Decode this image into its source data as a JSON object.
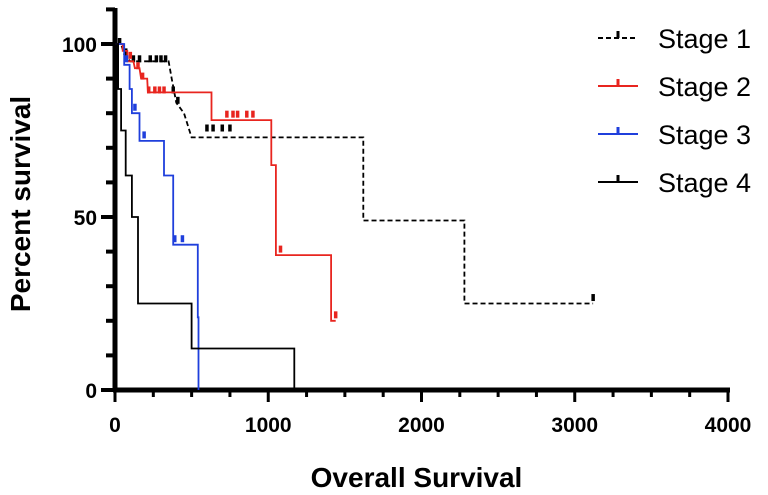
{
  "chart_data": {
    "type": "line",
    "subtype": "kaplan-meier",
    "xlabel": "Overall Survival",
    "ylabel": "Percent survival",
    "xlim": [
      0,
      4000
    ],
    "ylim": [
      0,
      100
    ],
    "xticks": [
      0,
      1000,
      2000,
      3000,
      4000
    ],
    "yticks": [
      0,
      50,
      100
    ],
    "xtick_labels": [
      "0",
      "1000",
      "2000",
      "3000",
      "4000"
    ],
    "ytick_labels": [
      "0",
      "50",
      "100"
    ],
    "legend_position": "top-right",
    "series": [
      {
        "name": "Stage 1",
        "color": "#000000",
        "dash": "dashed",
        "steps": [
          [
            0,
            100
          ],
          [
            40,
            100
          ],
          [
            60,
            97
          ],
          [
            100,
            95
          ],
          [
            350,
            95
          ],
          [
            370,
            90
          ],
          [
            400,
            83
          ],
          [
            450,
            80
          ],
          [
            500,
            73
          ],
          [
            1620,
            73
          ],
          [
            1620,
            49
          ],
          [
            2280,
            49
          ],
          [
            2280,
            25
          ],
          [
            3120,
            25
          ]
        ],
        "censored": [
          [
            30,
            100
          ],
          [
            70,
            97
          ],
          [
            120,
            95
          ],
          [
            160,
            95
          ],
          [
            230,
            95
          ],
          [
            270,
            95
          ],
          [
            300,
            95
          ],
          [
            330,
            95
          ],
          [
            380,
            86
          ],
          [
            410,
            83
          ],
          [
            600,
            75
          ],
          [
            640,
            75
          ],
          [
            700,
            75
          ],
          [
            750,
            75
          ],
          [
            3120,
            26
          ]
        ]
      },
      {
        "name": "Stage 2",
        "color": "#e8251f",
        "dash": "solid",
        "steps": [
          [
            0,
            100
          ],
          [
            50,
            100
          ],
          [
            50,
            98
          ],
          [
            80,
            98
          ],
          [
            80,
            95
          ],
          [
            120,
            95
          ],
          [
            130,
            93
          ],
          [
            160,
            93
          ],
          [
            170,
            90
          ],
          [
            210,
            90
          ],
          [
            215,
            86
          ],
          [
            630,
            86
          ],
          [
            630,
            78
          ],
          [
            1020,
            78
          ],
          [
            1020,
            65
          ],
          [
            1050,
            65
          ],
          [
            1050,
            39
          ],
          [
            1410,
            39
          ],
          [
            1410,
            20
          ],
          [
            1440,
            20
          ]
        ],
        "censored": [
          [
            100,
            96
          ],
          [
            150,
            93
          ],
          [
            180,
            90
          ],
          [
            220,
            86
          ],
          [
            260,
            86
          ],
          [
            290,
            86
          ],
          [
            320,
            86
          ],
          [
            730,
            79
          ],
          [
            770,
            79
          ],
          [
            800,
            79
          ],
          [
            860,
            79
          ],
          [
            900,
            79
          ],
          [
            1080,
            40
          ],
          [
            1440,
            21
          ]
        ]
      },
      {
        "name": "Stage 3",
        "color": "#1f3fdc",
        "dash": "solid",
        "steps": [
          [
            0,
            100
          ],
          [
            60,
            100
          ],
          [
            60,
            94
          ],
          [
            95,
            94
          ],
          [
            95,
            87
          ],
          [
            110,
            87
          ],
          [
            110,
            80
          ],
          [
            160,
            80
          ],
          [
            160,
            72
          ],
          [
            320,
            72
          ],
          [
            320,
            62
          ],
          [
            380,
            62
          ],
          [
            380,
            42
          ],
          [
            540,
            42
          ],
          [
            540,
            21
          ],
          [
            545,
            21
          ],
          [
            545,
            0
          ]
        ],
        "censored": [
          [
            75,
            95
          ],
          [
            130,
            81
          ],
          [
            190,
            73
          ],
          [
            390,
            43
          ],
          [
            440,
            43
          ]
        ]
      },
      {
        "name": "Stage 4",
        "color": "#000000",
        "dash": "solid",
        "steps": [
          [
            0,
            100
          ],
          [
            20,
            100
          ],
          [
            20,
            87
          ],
          [
            40,
            87
          ],
          [
            40,
            75
          ],
          [
            70,
            75
          ],
          [
            70,
            62
          ],
          [
            110,
            62
          ],
          [
            110,
            50
          ],
          [
            150,
            50
          ],
          [
            150,
            25
          ],
          [
            500,
            25
          ],
          [
            500,
            12
          ],
          [
            1170,
            12
          ],
          [
            1170,
            0
          ]
        ],
        "censored": []
      }
    ]
  }
}
